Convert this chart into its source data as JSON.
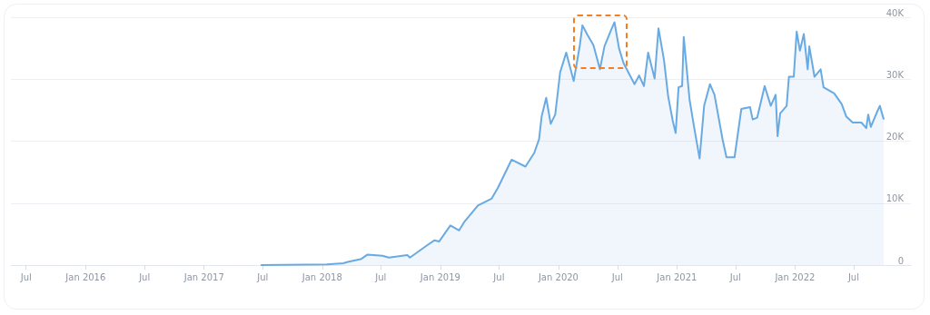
{
  "chart_data": {
    "type": "area",
    "x": [
      "2017-06-25",
      "2018-01-15",
      "2018-03-07",
      "2018-03-21",
      "2018-05-02",
      "2018-05-21",
      "2018-07-06",
      "2018-07-26",
      "2018-09-21",
      "2018-09-29",
      "2018-11-16",
      "2018-12-14",
      "2018-12-28",
      "2019-02-01",
      "2019-02-28",
      "2019-03-15",
      "2019-04-27",
      "2019-06-08",
      "2019-06-28",
      "2019-08-09",
      "2019-09-21",
      "2019-10-18",
      "2019-11-02",
      "2019-11-10",
      "2019-11-24",
      "2019-12-08",
      "2019-12-22",
      "2020-01-06",
      "2020-01-25",
      "2020-02-17",
      "2020-03-07",
      "2020-03-15",
      "2020-03-29",
      "2020-04-18",
      "2020-05-08",
      "2020-05-22",
      "2020-06-08",
      "2020-06-22",
      "2020-07-06",
      "2020-07-20",
      "2020-08-23",
      "2020-09-06",
      "2020-09-21",
      "2020-10-04",
      "2020-10-24",
      "2020-11-05",
      "2020-11-22",
      "2020-12-05",
      "2020-12-19",
      "2020-12-28",
      "2021-01-06",
      "2021-01-17",
      "2021-01-22",
      "2021-02-09",
      "2021-02-23",
      "2021-03-12",
      "2021-03-26",
      "2021-04-13",
      "2021-04-27",
      "2021-05-22",
      "2021-06-03",
      "2021-06-28",
      "2021-07-19",
      "2021-08-15",
      "2021-08-23",
      "2021-09-06",
      "2021-09-29",
      "2021-10-18",
      "2021-11-02",
      "2021-11-08",
      "2021-11-16",
      "2021-12-06",
      "2021-12-13",
      "2021-12-28",
      "2022-01-06",
      "2022-01-16",
      "2022-01-28",
      "2022-02-09",
      "2022-02-14",
      "2022-03-02",
      "2022-03-21",
      "2022-03-30",
      "2022-05-02",
      "2022-05-25",
      "2022-06-08",
      "2022-06-28",
      "2022-07-25",
      "2022-08-09",
      "2022-08-15",
      "2022-08-23",
      "2022-09-12",
      "2022-09-20",
      "2022-10-02"
    ],
    "series": [
      {
        "color": "#6aaae2",
        "values": [
          0,
          100,
          300,
          500,
          1000,
          1700,
          1500,
          1200,
          1600,
          1200,
          3000,
          4000,
          3800,
          6400,
          5600,
          6900,
          9600,
          10700,
          12500,
          17000,
          15900,
          18100,
          20300,
          24000,
          27000,
          22800,
          24300,
          31100,
          34300,
          29700,
          35500,
          38700,
          37300,
          35500,
          31600,
          35300,
          37500,
          39200,
          35000,
          32600,
          29200,
          30600,
          28900,
          34300,
          30100,
          38200,
          33100,
          27200,
          23300,
          21300,
          28700,
          28900,
          36800,
          26700,
          22300,
          17200,
          25700,
          29200,
          27500,
          20300,
          17400,
          17400,
          25200,
          25500,
          23500,
          23800,
          28900,
          25700,
          27500,
          20800,
          24500,
          25700,
          30400,
          30400,
          37700,
          34600,
          37300,
          31600,
          35300,
          30400,
          31600,
          28700,
          27700,
          26000,
          24000,
          23000,
          23000,
          22100,
          24300,
          22300,
          24800,
          25700,
          23500
        ]
      }
    ],
    "xlim": [
      "2015-05-15",
      "2022-12-25"
    ],
    "xticks": [
      {
        "value": "2015-07-01",
        "label": "Jul"
      },
      {
        "value": "2016-01-01",
        "label": "Jan 2016"
      },
      {
        "value": "2016-07-01",
        "label": "Jul"
      },
      {
        "value": "2017-01-01",
        "label": "Jan 2017"
      },
      {
        "value": "2017-07-01",
        "label": "Jul"
      },
      {
        "value": "2018-01-01",
        "label": "Jan 2018"
      },
      {
        "value": "2018-07-01",
        "label": "Jul"
      },
      {
        "value": "2019-01-01",
        "label": "Jan 2019"
      },
      {
        "value": "2019-07-01",
        "label": "Jul"
      },
      {
        "value": "2020-01-01",
        "label": "Jan 2020"
      },
      {
        "value": "2020-07-01",
        "label": "Jul"
      },
      {
        "value": "2021-01-01",
        "label": "Jan 2021"
      },
      {
        "value": "2021-07-01",
        "label": "Jul"
      },
      {
        "value": "2022-01-01",
        "label": "Jan 2022"
      },
      {
        "value": "2022-07-01",
        "label": "Jul"
      }
    ],
    "ylim": [
      0,
      40000
    ],
    "yticks": [
      0,
      {
        "value": 10000,
        "label": "10K"
      },
      {
        "value": 20000,
        "label": "20K"
      },
      {
        "value": 30000,
        "label": "30K"
      },
      {
        "value": 40000,
        "label": "40K"
      }
    ],
    "grid": "y"
  }
}
